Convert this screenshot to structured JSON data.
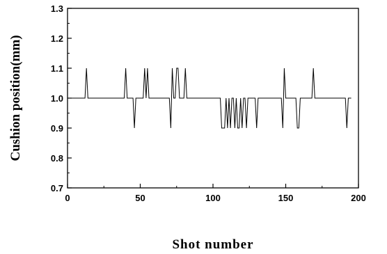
{
  "chart_data": {
    "type": "line",
    "xlabel": "Shot number",
    "ylabel": "Cushion position(mm)",
    "xlim": [
      0,
      200
    ],
    "ylim": [
      0.7,
      1.3
    ],
    "x_ticks": [
      0,
      50,
      100,
      150,
      200
    ],
    "x_tick_labels": [
      "0",
      "50",
      "100",
      "150",
      "200"
    ],
    "y_ticks": [
      0.7,
      0.8,
      0.9,
      1.0,
      1.1,
      1.2,
      1.3
    ],
    "y_tick_labels": [
      "0.7",
      "0.8",
      "0.9",
      "1.0",
      "1.1",
      "1.2",
      "1.3"
    ],
    "grid": false,
    "legend": "none",
    "line_color": "#000000",
    "series": [
      {
        "x": [
          0,
          12,
          13,
          14,
          39,
          40,
          41,
          45,
          46,
          47,
          52,
          53,
          54,
          55,
          56,
          57,
          70,
          71,
          72,
          73,
          74,
          75,
          76,
          77,
          78,
          79,
          80,
          81,
          82,
          105,
          106,
          107,
          108,
          109,
          110,
          111,
          112,
          113,
          114,
          115,
          116,
          117,
          118,
          119,
          120,
          121,
          122,
          123,
          124,
          125,
          126,
          127,
          128,
          129,
          130,
          131,
          132,
          147,
          148,
          149,
          150,
          151,
          157,
          158,
          159,
          160,
          161,
          168,
          169,
          170,
          171,
          191,
          192,
          193,
          194,
          195
        ],
        "y": [
          1.0,
          1.0,
          1.1,
          1.0,
          1.0,
          1.1,
          1.0,
          1.0,
          0.9,
          1.0,
          1.0,
          1.1,
          1.0,
          1.1,
          1.0,
          1.0,
          1.0,
          0.9,
          1.1,
          1.0,
          1.0,
          1.1,
          1.1,
          1.0,
          1.0,
          1.0,
          1.0,
          1.1,
          1.0,
          1.0,
          0.9,
          0.9,
          0.9,
          1.0,
          0.9,
          1.0,
          0.9,
          1.0,
          1.0,
          0.9,
          1.0,
          0.9,
          0.9,
          1.0,
          0.9,
          1.0,
          1.0,
          0.9,
          1.0,
          1.0,
          1.0,
          1.0,
          1.0,
          1.0,
          0.9,
          1.0,
          1.0,
          1.0,
          0.9,
          1.1,
          1.0,
          1.0,
          1.0,
          0.9,
          0.9,
          1.0,
          1.0,
          1.0,
          1.1,
          1.0,
          1.0,
          1.0,
          0.9,
          1.0,
          1.0,
          1.0
        ]
      }
    ]
  }
}
